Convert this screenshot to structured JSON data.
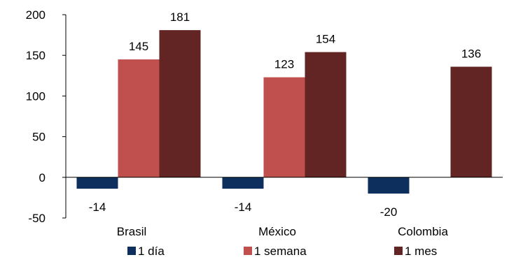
{
  "chart_data": {
    "type": "bar",
    "categories": [
      "Brasil",
      "México",
      "Colombia"
    ],
    "series": [
      {
        "name": "1 día",
        "color": "#0d2f5e",
        "values": [
          -14,
          -14,
          -20
        ]
      },
      {
        "name": "1 semana",
        "color": "#c0504d",
        "values": [
          145,
          123,
          null
        ]
      },
      {
        "name": "1 mes",
        "color": "#632523",
        "values": [
          181,
          154,
          136
        ]
      }
    ],
    "data_labels": [
      [
        "-14",
        "-14",
        "-20"
      ],
      [
        "145",
        "123",
        ""
      ],
      [
        "181",
        "154",
        "136"
      ]
    ],
    "yticks": [
      "200",
      "150",
      "100",
      "50",
      "0",
      "-50"
    ],
    "ylim": [
      -50,
      200
    ],
    "grid": false,
    "legend_position": "bottom"
  }
}
